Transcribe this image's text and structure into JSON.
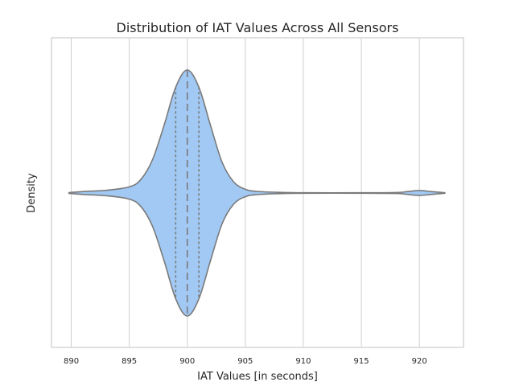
{
  "chart_data": {
    "type": "violin",
    "title": "Distribution of IAT Values Across All Sensors",
    "xlabel": "IAT Values [in seconds]",
    "ylabel": "Density",
    "xlim": [
      888.3,
      923.8
    ],
    "xticks": [
      890,
      895,
      900,
      905,
      910,
      915,
      920
    ],
    "grid": "x",
    "orientation": "horizontal",
    "range": [
      889.8,
      922.2
    ],
    "quartiles": {
      "q1": 899,
      "median": 900,
      "q3": 901
    },
    "density_profile": {
      "x": [
        889.8,
        891,
        893,
        895,
        896,
        897,
        898,
        899,
        900,
        901,
        902,
        903,
        904,
        905,
        906,
        908,
        910,
        915,
        918,
        919,
        920,
        921,
        922.2
      ],
      "half_width": [
        0.003,
        0.012,
        0.022,
        0.05,
        0.11,
        0.27,
        0.55,
        0.86,
        1.0,
        0.86,
        0.55,
        0.25,
        0.09,
        0.03,
        0.013,
        0.005,
        0.002,
        0.002,
        0.004,
        0.012,
        0.02,
        0.012,
        0.002
      ]
    },
    "colors": {
      "fill": "#a1c9f4",
      "edge": "#7a7a7a",
      "grid": "#d0d0d0",
      "frame": "#cccccc"
    }
  }
}
